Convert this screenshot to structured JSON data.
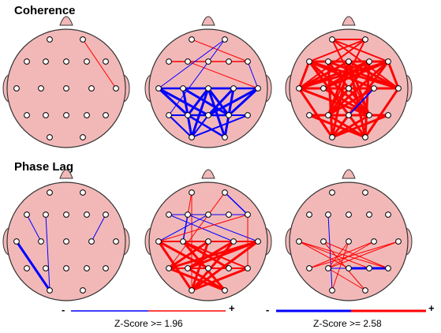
{
  "sections": [
    {
      "title": "Coherence"
    },
    {
      "title": "Phase Lag"
    }
  ],
  "colors": {
    "head_fill": "#f2b8b8",
    "head_stroke": "#333333",
    "positive": "#ff0000",
    "negative": "#0000ff",
    "electrode_fill": "#ffffff",
    "electrode_stroke": "#000000"
  },
  "electrodes": [
    "Fp1",
    "Fp2",
    "F7",
    "F3",
    "Fz",
    "F4",
    "F8",
    "T3",
    "C3",
    "Cz",
    "C4",
    "T4",
    "T5",
    "P3",
    "Pz",
    "P4",
    "T6",
    "O1",
    "O2"
  ],
  "maps": [
    {
      "id": "coh-1",
      "connections": [
        {
          "a": "Fp2",
          "b": "T4",
          "sign": "+",
          "w": 1
        }
      ]
    },
    {
      "id": "coh-2",
      "connections": [
        {
          "a": "F7",
          "b": "F8",
          "sign": "+",
          "w": 1.5
        },
        {
          "a": "Fp1",
          "b": "F8",
          "sign": "+",
          "w": 1
        },
        {
          "a": "F3",
          "b": "T4",
          "sign": "+",
          "w": 1
        },
        {
          "a": "Fp2",
          "b": "T3",
          "sign": "-",
          "w": 1
        },
        {
          "a": "Fp2",
          "b": "T5",
          "sign": "-",
          "w": 1
        },
        {
          "a": "F8",
          "b": "T4",
          "sign": "-",
          "w": 1
        },
        {
          "a": "T3",
          "b": "P3",
          "sign": "-",
          "w": 3
        },
        {
          "a": "T3",
          "b": "Pz",
          "sign": "-",
          "w": 3
        },
        {
          "a": "C3",
          "b": "P4",
          "sign": "-",
          "w": 3
        },
        {
          "a": "C3",
          "b": "O1",
          "sign": "-",
          "w": 3
        },
        {
          "a": "Cz",
          "b": "P3",
          "sign": "-",
          "w": 3
        },
        {
          "a": "Cz",
          "b": "P4",
          "sign": "-",
          "w": 3
        },
        {
          "a": "Cz",
          "b": "O1",
          "sign": "-",
          "w": 3
        },
        {
          "a": "Cz",
          "b": "O2",
          "sign": "-",
          "w": 3
        },
        {
          "a": "C4",
          "b": "Pz",
          "sign": "-",
          "w": 3
        },
        {
          "a": "C4",
          "b": "O2",
          "sign": "-",
          "w": 3
        },
        {
          "a": "T4",
          "b": "P4",
          "sign": "-",
          "w": 3
        },
        {
          "a": "T4",
          "b": "Pz",
          "sign": "-",
          "w": 3
        },
        {
          "a": "T3",
          "b": "C4",
          "sign": "-",
          "w": 2.5
        },
        {
          "a": "C3",
          "b": "T4",
          "sign": "-",
          "w": 2.5
        },
        {
          "a": "P3",
          "b": "P4",
          "sign": "-",
          "w": 2.5
        },
        {
          "a": "T5",
          "b": "P4",
          "sign": "-",
          "w": 2
        },
        {
          "a": "P3",
          "b": "T6",
          "sign": "-",
          "w": 2
        },
        {
          "a": "T5",
          "b": "O1",
          "sign": "-",
          "w": 2
        },
        {
          "a": "O1",
          "b": "T6",
          "sign": "-",
          "w": 2
        },
        {
          "a": "P3",
          "b": "O2",
          "sign": "-",
          "w": 2.5
        },
        {
          "a": "Pz",
          "b": "O1",
          "sign": "-",
          "w": 2
        }
      ]
    },
    {
      "id": "coh-3",
      "connections": [
        {
          "a": "F7",
          "b": "F8",
          "sign": "+",
          "w": 3
        },
        {
          "a": "F7",
          "b": "T4",
          "sign": "+",
          "w": 3
        },
        {
          "a": "F7",
          "b": "C4",
          "sign": "+",
          "w": 3
        },
        {
          "a": "F7",
          "b": "P4",
          "sign": "+",
          "w": 3
        },
        {
          "a": "F7",
          "b": "O2",
          "sign": "+",
          "w": 3
        },
        {
          "a": "F7",
          "b": "Pz",
          "sign": "+",
          "w": 3
        },
        {
          "a": "F3",
          "b": "T4",
          "sign": "+",
          "w": 3
        },
        {
          "a": "F3",
          "b": "P4",
          "sign": "+",
          "w": 3
        },
        {
          "a": "F3",
          "b": "O1",
          "sign": "+",
          "w": 3
        },
        {
          "a": "F3",
          "b": "F8",
          "sign": "+",
          "w": 3
        },
        {
          "a": "Fz",
          "b": "T3",
          "sign": "+",
          "w": 3
        },
        {
          "a": "Fz",
          "b": "T4",
          "sign": "+",
          "w": 3
        },
        {
          "a": "Fz",
          "b": "O1",
          "sign": "+",
          "w": 3
        },
        {
          "a": "Fz",
          "b": "O2",
          "sign": "+",
          "w": 3
        },
        {
          "a": "Fz",
          "b": "P3",
          "sign": "+",
          "w": 3
        },
        {
          "a": "Fz",
          "b": "P4",
          "sign": "+",
          "w": 3
        },
        {
          "a": "F4",
          "b": "T3",
          "sign": "+",
          "w": 3
        },
        {
          "a": "F4",
          "b": "P3",
          "sign": "+",
          "w": 3
        },
        {
          "a": "F4",
          "b": "O2",
          "sign": "+",
          "w": 3
        },
        {
          "a": "F4",
          "b": "C3",
          "sign": "+",
          "w": 3
        },
        {
          "a": "F8",
          "b": "T3",
          "sign": "+",
          "w": 3
        },
        {
          "a": "F8",
          "b": "C3",
          "sign": "+",
          "w": 3
        },
        {
          "a": "F8",
          "b": "P3",
          "sign": "+",
          "w": 3
        },
        {
          "a": "F8",
          "b": "O1",
          "sign": "+",
          "w": 3
        },
        {
          "a": "T3",
          "b": "T4",
          "sign": "+",
          "w": 3
        },
        {
          "a": "T3",
          "b": "C4",
          "sign": "+",
          "w": 3
        },
        {
          "a": "T3",
          "b": "P4",
          "sign": "+",
          "w": 3
        },
        {
          "a": "C3",
          "b": "T4",
          "sign": "+",
          "w": 3
        },
        {
          "a": "C3",
          "b": "P4",
          "sign": "+",
          "w": 3
        },
        {
          "a": "C4",
          "b": "P3",
          "sign": "+",
          "w": 3
        },
        {
          "a": "T3",
          "b": "O1",
          "sign": "+",
          "w": 3
        },
        {
          "a": "T4",
          "b": "O2",
          "sign": "+",
          "w": 3
        },
        {
          "a": "T5",
          "b": "T6",
          "sign": "+",
          "w": 3
        },
        {
          "a": "T5",
          "b": "O2",
          "sign": "+",
          "w": 3
        },
        {
          "a": "T6",
          "b": "O1",
          "sign": "+",
          "w": 3
        },
        {
          "a": "P3",
          "b": "O2",
          "sign": "+",
          "w": 3
        },
        {
          "a": "P4",
          "b": "O1",
          "sign": "+",
          "w": 3
        },
        {
          "a": "Fp1",
          "b": "Fp2",
          "sign": "+",
          "w": 2
        },
        {
          "a": "Fp1",
          "b": "F8",
          "sign": "+",
          "w": 2
        },
        {
          "a": "Fp2",
          "b": "F7",
          "sign": "+",
          "w": 2
        },
        {
          "a": "Fp1",
          "b": "T4",
          "sign": "+",
          "w": 2
        },
        {
          "a": "Fp2",
          "b": "T3",
          "sign": "+",
          "w": 2
        },
        {
          "a": "Fp1",
          "b": "P4",
          "sign": "+",
          "w": 2
        },
        {
          "a": "Fp2",
          "b": "P3",
          "sign": "+",
          "w": 2
        },
        {
          "a": "Cz",
          "b": "T3",
          "sign": "+",
          "w": 3
        },
        {
          "a": "Cz",
          "b": "T4",
          "sign": "+",
          "w": 3
        },
        {
          "a": "F7",
          "b": "T3",
          "sign": "+",
          "w": 3
        },
        {
          "a": "F8",
          "b": "T4",
          "sign": "+",
          "w": 3
        },
        {
          "a": "C4",
          "b": "Pz",
          "sign": "-",
          "w": 2
        }
      ]
    },
    {
      "id": "phase-1",
      "connections": [
        {
          "a": "F7",
          "b": "C3",
          "sign": "-",
          "w": 1
        },
        {
          "a": "F3",
          "b": "O1",
          "sign": "-",
          "w": 1
        },
        {
          "a": "T3",
          "b": "O1",
          "sign": "-",
          "w": 3
        },
        {
          "a": "F8",
          "b": "C4",
          "sign": "-",
          "w": 1
        }
      ]
    },
    {
      "id": "phase-2",
      "connections": [
        {
          "a": "Fp1",
          "b": "F3",
          "sign": "+",
          "w": 1
        },
        {
          "a": "Fp1",
          "b": "O1",
          "sign": "+",
          "w": 1
        },
        {
          "a": "Fp2",
          "b": "F8",
          "sign": "-",
          "w": 1.5
        },
        {
          "a": "Fp2",
          "b": "T5",
          "sign": "+",
          "w": 1
        },
        {
          "a": "F7",
          "b": "F4",
          "sign": "-",
          "w": 1
        },
        {
          "a": "F7",
          "b": "C4",
          "sign": "-",
          "w": 1
        },
        {
          "a": "F3",
          "b": "F8",
          "sign": "-",
          "w": 1
        },
        {
          "a": "F3",
          "b": "T4",
          "sign": "-",
          "w": 1
        },
        {
          "a": "F3",
          "b": "C3",
          "sign": "-",
          "w": 1.5
        },
        {
          "a": "Fz",
          "b": "T3",
          "sign": "-",
          "w": 1
        },
        {
          "a": "F8",
          "b": "T3",
          "sign": "+",
          "w": 1
        },
        {
          "a": "F8",
          "b": "T6",
          "sign": "+",
          "w": 1
        },
        {
          "a": "T3",
          "b": "Pz",
          "sign": "+",
          "w": 3
        },
        {
          "a": "T3",
          "b": "O1",
          "sign": "+",
          "w": 3
        },
        {
          "a": "T3",
          "b": "T4",
          "sign": "+",
          "w": 2
        },
        {
          "a": "C3",
          "b": "P4",
          "sign": "+",
          "w": 3
        },
        {
          "a": "C3",
          "b": "O2",
          "sign": "+",
          "w": 3
        },
        {
          "a": "Cz",
          "b": "T5",
          "sign": "+",
          "w": 3
        },
        {
          "a": "Cz",
          "b": "O1",
          "sign": "+",
          "w": 3
        },
        {
          "a": "C4",
          "b": "P3",
          "sign": "+",
          "w": 3
        },
        {
          "a": "C4",
          "b": "O1",
          "sign": "+",
          "w": 3
        },
        {
          "a": "T4",
          "b": "T5",
          "sign": "+",
          "w": 3
        },
        {
          "a": "T4",
          "b": "P3",
          "sign": "+",
          "w": 3
        },
        {
          "a": "T4",
          "b": "O1",
          "sign": "+",
          "w": 3
        },
        {
          "a": "T5",
          "b": "O2",
          "sign": "+",
          "w": 3
        },
        {
          "a": "P3",
          "b": "O2",
          "sign": "+",
          "w": 3
        },
        {
          "a": "P3",
          "b": "T6",
          "sign": "+",
          "w": 2
        },
        {
          "a": "T5",
          "b": "T6",
          "sign": "+",
          "w": 2
        },
        {
          "a": "Pz",
          "b": "T6",
          "sign": "+",
          "w": 2
        },
        {
          "a": "O1",
          "b": "T6",
          "sign": "+",
          "w": 3
        },
        {
          "a": "C3",
          "b": "T6",
          "sign": "+",
          "w": 2
        }
      ]
    },
    {
      "id": "phase-3",
      "connections": [
        {
          "a": "F3",
          "b": "O1",
          "sign": "-",
          "w": 1
        },
        {
          "a": "T3",
          "b": "Pz",
          "sign": "+",
          "w": 1
        },
        {
          "a": "T3",
          "b": "P4",
          "sign": "+",
          "w": 1
        },
        {
          "a": "T3",
          "b": "T6",
          "sign": "+",
          "w": 1
        },
        {
          "a": "C3",
          "b": "T6",
          "sign": "+",
          "w": 1
        },
        {
          "a": "C3",
          "b": "O2",
          "sign": "+",
          "w": 1
        },
        {
          "a": "Cz",
          "b": "O1",
          "sign": "+",
          "w": 1
        },
        {
          "a": "Cz",
          "b": "P3",
          "sign": "+",
          "w": 1
        },
        {
          "a": "C4",
          "b": "T5",
          "sign": "+",
          "w": 1
        },
        {
          "a": "C4",
          "b": "P3",
          "sign": "+",
          "w": 1
        },
        {
          "a": "T4",
          "b": "P3",
          "sign": "+",
          "w": 1
        },
        {
          "a": "T4",
          "b": "T5",
          "sign": "+",
          "w": 1
        },
        {
          "a": "P3",
          "b": "O2",
          "sign": "+",
          "w": 1
        },
        {
          "a": "Pz",
          "b": "T6",
          "sign": "-",
          "w": 3
        },
        {
          "a": "P3",
          "b": "Pz",
          "sign": "-",
          "w": 1
        }
      ]
    }
  ],
  "legends": [
    {
      "id": "legend-196",
      "minus": "-",
      "plus": "+",
      "label": "Z-Score >= 1.96"
    },
    {
      "id": "legend-258",
      "minus": "-",
      "plus": "+",
      "label": "Z-Score >= 2.58"
    }
  ]
}
